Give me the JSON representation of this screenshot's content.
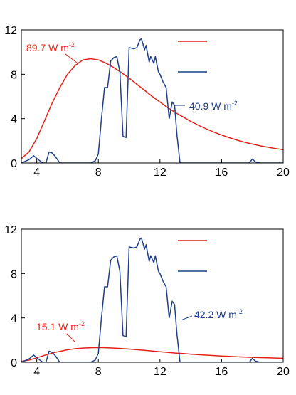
{
  "colors": {
    "red": "#e32119",
    "blue": "#1f3f8c",
    "axis": "#000000"
  },
  "chart_data": [
    {
      "type": "line",
      "grid": false,
      "legend": "top-right, line samples only",
      "xlim": [
        3,
        20
      ],
      "ylim": [
        0,
        12
      ],
      "xticks": [
        4,
        8,
        12,
        16,
        20
      ],
      "yticks": [
        0,
        4,
        8,
        12
      ],
      "xtick_labels": [
        "4",
        "8",
        "12",
        "16",
        "20"
      ],
      "ytick_labels": [
        "0",
        "4",
        "8",
        "12"
      ],
      "series": [
        {
          "color": "red",
          "annotation": "89.7 W m",
          "annotation_sup": "-2",
          "x": [
            3.0,
            3.5,
            4.0,
            4.5,
            5.0,
            5.5,
            6.0,
            6.5,
            7.0,
            7.5,
            8.0,
            8.5,
            9.0,
            9.5,
            10.0,
            10.5,
            11.0,
            11.5,
            12.0,
            12.5,
            13.0,
            13.5,
            14.0,
            14.5,
            15.0,
            15.5,
            16.0,
            16.5,
            17.0,
            17.5,
            18.0,
            18.5,
            19.0,
            19.5,
            20.0
          ],
          "y": [
            0.4,
            1.0,
            2.2,
            3.8,
            5.4,
            6.8,
            8.0,
            8.8,
            9.3,
            9.4,
            9.3,
            9.0,
            8.6,
            8.15,
            7.65,
            7.1,
            6.55,
            6.0,
            5.5,
            5.0,
            4.55,
            4.15,
            3.75,
            3.4,
            3.08,
            2.78,
            2.52,
            2.28,
            2.06,
            1.87,
            1.7,
            1.55,
            1.42,
            1.3,
            1.2
          ]
        },
        {
          "color": "blue",
          "annotation": "40.9 W m",
          "annotation_sup": "-2",
          "x": [
            3.0,
            3.5,
            3.8,
            4.1,
            4.4,
            4.6,
            4.8,
            5.0,
            5.2,
            5.5,
            6.0,
            7.0,
            7.5,
            7.8,
            8.0,
            8.2,
            8.4,
            8.6,
            8.8,
            9.0,
            9.2,
            9.4,
            9.6,
            9.8,
            10.0,
            10.3,
            10.5,
            10.7,
            10.8,
            11.0,
            11.1,
            11.3,
            11.4,
            11.6,
            11.7,
            11.9,
            12.0,
            12.2,
            12.4,
            12.6,
            12.8,
            12.95,
            13.1,
            13.3,
            13.6,
            14.0,
            15.0,
            16.0,
            17.0,
            17.5,
            17.8,
            18.0,
            18.2,
            18.5,
            19.0,
            19.5,
            20.0
          ],
          "y": [
            0.0,
            0.3,
            0.65,
            0.3,
            0.0,
            0.0,
            1.0,
            0.9,
            0.6,
            0.0,
            0.0,
            0.0,
            0.0,
            0.2,
            0.8,
            4.0,
            6.8,
            6.8,
            9.2,
            9.5,
            9.6,
            8.2,
            2.4,
            2.3,
            10.4,
            10.3,
            10.4,
            11.1,
            11.2,
            10.2,
            10.6,
            9.1,
            9.6,
            9.0,
            9.6,
            8.2,
            8.0,
            7.3,
            6.8,
            4.0,
            5.5,
            5.2,
            2.6,
            0.0,
            0.0,
            0.0,
            0.0,
            0.0,
            0.0,
            0.0,
            0.0,
            0.35,
            0.1,
            0.0,
            0.0,
            0.0,
            0.0
          ]
        }
      ]
    },
    {
      "type": "line",
      "grid": false,
      "legend": "top-right, line samples only",
      "xlim": [
        3,
        20
      ],
      "ylim": [
        0,
        12
      ],
      "xticks": [
        4,
        8,
        12,
        16,
        20
      ],
      "yticks": [
        0,
        4,
        8,
        12
      ],
      "xtick_labels": [
        "4",
        "8",
        "12",
        "16",
        "20"
      ],
      "ytick_labels": [
        "0",
        "4",
        "8",
        "12"
      ],
      "series": [
        {
          "color": "red",
          "annotation": "15.1 W m",
          "annotation_sup": "-2",
          "x": [
            3.0,
            3.5,
            4.0,
            4.5,
            5.0,
            5.5,
            6.0,
            6.5,
            7.0,
            7.5,
            8.0,
            8.5,
            9.0,
            9.5,
            10.0,
            10.5,
            11.0,
            11.5,
            12.0,
            12.5,
            13.0,
            13.5,
            14.0,
            14.5,
            15.0,
            15.5,
            16.0,
            16.5,
            17.0,
            17.5,
            18.0,
            18.5,
            19.0,
            19.5,
            20.0
          ],
          "y": [
            0.08,
            0.2,
            0.4,
            0.62,
            0.82,
            0.98,
            1.12,
            1.22,
            1.28,
            1.31,
            1.32,
            1.31,
            1.28,
            1.24,
            1.19,
            1.13,
            1.07,
            1.01,
            0.95,
            0.89,
            0.83,
            0.78,
            0.73,
            0.68,
            0.64,
            0.6,
            0.56,
            0.53,
            0.5,
            0.47,
            0.44,
            0.42,
            0.4,
            0.38,
            0.36
          ]
        },
        {
          "color": "blue",
          "annotation": "42.2 W m",
          "annotation_sup": "-2",
          "x": [
            3.0,
            3.5,
            3.8,
            4.1,
            4.4,
            4.6,
            4.8,
            5.0,
            5.2,
            5.5,
            6.0,
            7.0,
            7.5,
            7.8,
            8.0,
            8.2,
            8.4,
            8.6,
            8.8,
            9.0,
            9.2,
            9.4,
            9.6,
            9.8,
            10.0,
            10.3,
            10.5,
            10.7,
            10.8,
            11.0,
            11.1,
            11.3,
            11.4,
            11.6,
            11.7,
            11.9,
            12.0,
            12.2,
            12.4,
            12.6,
            12.8,
            12.95,
            13.1,
            13.3,
            13.6,
            14.0,
            15.0,
            16.0,
            17.0,
            17.5,
            17.8,
            18.0,
            18.2,
            18.5,
            19.0,
            19.5,
            20.0
          ],
          "y": [
            0.0,
            0.3,
            0.65,
            0.3,
            0.0,
            0.0,
            1.0,
            0.9,
            0.6,
            0.0,
            0.0,
            0.0,
            0.0,
            0.2,
            0.8,
            4.0,
            6.8,
            6.8,
            9.2,
            9.5,
            9.6,
            8.2,
            2.4,
            2.3,
            10.4,
            10.3,
            10.4,
            11.1,
            11.2,
            10.2,
            10.6,
            9.1,
            9.6,
            9.0,
            9.6,
            8.2,
            8.0,
            7.3,
            6.8,
            4.0,
            5.5,
            5.2,
            2.6,
            0.0,
            0.0,
            0.0,
            0.0,
            0.0,
            0.0,
            0.0,
            0.0,
            0.35,
            0.1,
            0.0,
            0.0,
            0.0,
            0.0
          ]
        }
      ]
    }
  ]
}
